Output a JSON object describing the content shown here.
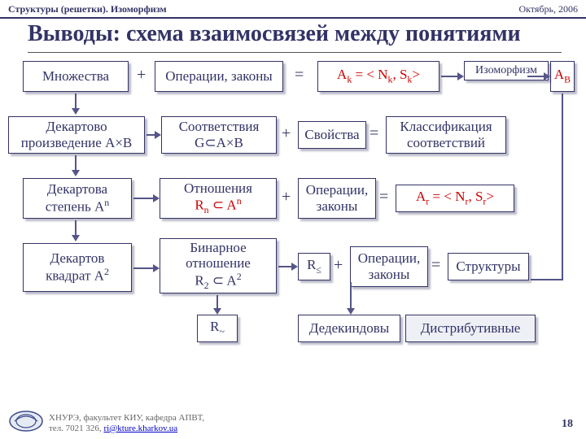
{
  "header": {
    "left": "Структуры (решетки). Изоморфизм",
    "right": "Октябрь, 2006"
  },
  "title": "Выводы: схема взаимосвязей между понятиями",
  "boxes": {
    "sets": "Множества",
    "ops_laws": "Операции, законы",
    "algebra_eq_html": "A<sub>k</sub> = &lt; N<sub>k</sub>, S<sub>k</sub>&gt;",
    "isomorph": "Изоморфизм",
    "ab": "A<sub>B</sub>",
    "cart_prod_html": "Декартово<br>произведение A×B",
    "corr_html": "Соответствия<br>G⊂A×B",
    "props": "Свойства",
    "classif_html": "Классификация<br>соответствий",
    "cart_pow_html": "Декартова<br>степень A<sup>n</sup>",
    "rel_top": "Отношения",
    "rel_sub_html": "R<sub>n</sub> ⊂ A<sup>n</sup>",
    "ops_laws2_html": "Операции,<br>законы",
    "algebra_r_html": "A<sub>r</sub> = &lt; N<sub>r</sub>, S<sub>r</sub>&gt;",
    "cart_sq_html": "Декартов<br>квадрат A<sup>2</sup>",
    "bin_rel_html": "Бинарное<br>отношение<br>R<sub>2</sub> ⊂ A<sup>2</sup>",
    "r_le_html": "R<sub>≤</sub>",
    "ops_laws3_html": "Операции,<br>законы",
    "struct": "Структуры",
    "r_tilde_html": "R<sub>~</sub>",
    "dedekind": "Дедекиндовы",
    "distrib": "Дистрибутивные"
  },
  "ops": {
    "plus": "+",
    "eq": "="
  },
  "footer": {
    "line1": "ХНУРЭ, факультет КИУ, кафедра АПВТ,",
    "line2_pre": "тел. 7021 326, ",
    "email": "ri@kture.kharkov.ua"
  },
  "page": "18",
  "colors": {
    "border": "#333366",
    "red": "#cc0000",
    "logo_bg": "#e6eaf4",
    "logo_stroke": "#3b4a8a"
  }
}
